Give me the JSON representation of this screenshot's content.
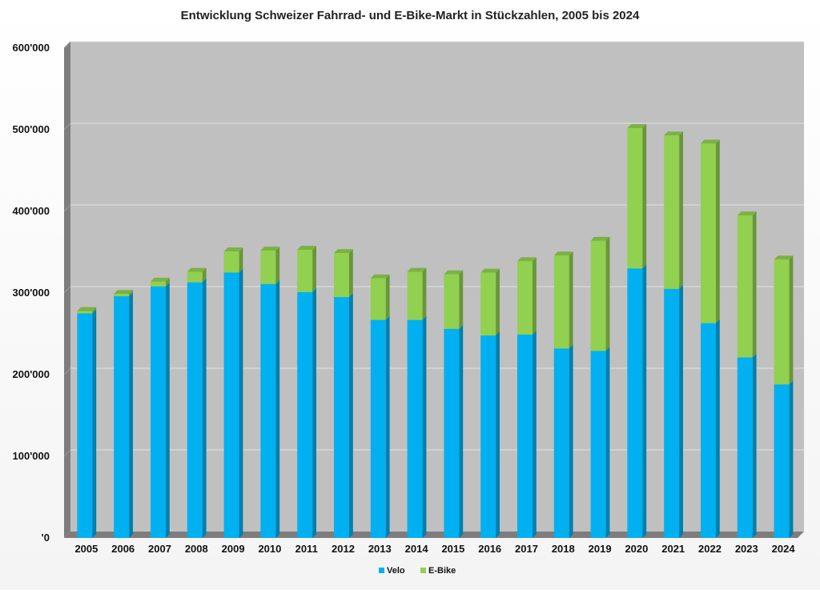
{
  "chart_data": {
    "type": "bar",
    "stacked": true,
    "title": "Entwicklung Schweizer Fahrrad- und E-Bike-Markt in Stückzahlen, 2005 bis 2024",
    "xlabel": "",
    "ylabel": "",
    "ylim": [
      0,
      600000
    ],
    "yticks": [
      0,
      100000,
      200000,
      300000,
      400000,
      500000,
      600000
    ],
    "ytick_labels": [
      "'0",
      "100'000",
      "200'000",
      "300'000",
      "400'000",
      "500'000",
      "600'000"
    ],
    "grid": true,
    "legend_position": "bottom",
    "categories": [
      "2005",
      "2006",
      "2007",
      "2008",
      "2009",
      "2010",
      "2011",
      "2012",
      "2013",
      "2014",
      "2015",
      "2016",
      "2017",
      "2018",
      "2019",
      "2020",
      "2021",
      "2022",
      "2023",
      "2024"
    ],
    "series": [
      {
        "name": "Velo",
        "color": "#00b0f0",
        "values": [
          275000,
          296000,
          308000,
          313000,
          325000,
          311000,
          301000,
          295000,
          267000,
          267000,
          256000,
          248000,
          249000,
          232000,
          229000,
          330000,
          305000,
          263000,
          221000,
          188000
        ]
      },
      {
        "name": "E-Bike",
        "color": "#92d050",
        "values": [
          3000,
          3000,
          6000,
          13000,
          26000,
          41000,
          52000,
          54000,
          51000,
          59000,
          67000,
          77000,
          90000,
          114000,
          135000,
          172000,
          188000,
          220000,
          174000,
          153000
        ]
      }
    ]
  }
}
